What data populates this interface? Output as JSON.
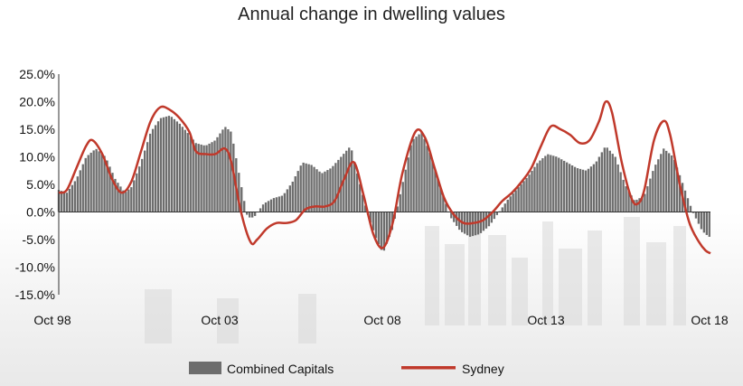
{
  "chart_data": {
    "type": "bar+line",
    "title": "Annual change in dwelling values",
    "y_ticks": [
      "25.0%",
      "20.0%",
      "15.0%",
      "10.0%",
      "5.0%",
      "0.0%",
      "-5.0%",
      "-10.0%",
      "-15.0%"
    ],
    "y_tick_values": [
      25,
      20,
      15,
      10,
      5,
      0,
      -5,
      -10,
      -15
    ],
    "x_ticks": [
      "Oct 98",
      "Oct 03",
      "Oct 08",
      "Oct 13",
      "Oct 18"
    ],
    "ylim": [
      -15,
      25
    ],
    "x_range": [
      "Oct 98",
      "Oct 18"
    ],
    "legend": {
      "placement": "bottom-center"
    },
    "series": [
      {
        "name": "Combined Capitals",
        "type": "bar",
        "color": "#6d6d6d",
        "points": [
          [
            1998.75,
            4.0
          ],
          [
            1999.0,
            3.5
          ],
          [
            1999.3,
            6.0
          ],
          [
            1999.6,
            10.0
          ],
          [
            1999.9,
            11.5
          ],
          [
            2000.2,
            10.0
          ],
          [
            2000.5,
            6.0
          ],
          [
            2000.8,
            3.5
          ],
          [
            2001.0,
            4.5
          ],
          [
            2001.3,
            9.0
          ],
          [
            2001.6,
            14.5
          ],
          [
            2001.9,
            17.0
          ],
          [
            2002.2,
            17.5
          ],
          [
            2002.5,
            16.0
          ],
          [
            2002.8,
            14.0
          ],
          [
            2003.0,
            12.5
          ],
          [
            2003.3,
            12.0
          ],
          [
            2003.6,
            13.0
          ],
          [
            2003.9,
            15.5
          ],
          [
            2004.1,
            14.5
          ],
          [
            2004.4,
            5.0
          ],
          [
            2004.6,
            -1.0
          ],
          [
            2004.8,
            -1.0
          ],
          [
            2005.1,
            1.5
          ],
          [
            2005.4,
            2.5
          ],
          [
            2005.7,
            3.0
          ],
          [
            2006.0,
            5.5
          ],
          [
            2006.3,
            9.0
          ],
          [
            2006.6,
            8.5
          ],
          [
            2006.9,
            7.0
          ],
          [
            2007.2,
            8.0
          ],
          [
            2007.5,
            10.0
          ],
          [
            2007.8,
            12.0
          ],
          [
            2008.0,
            7.0
          ],
          [
            2008.3,
            0.0
          ],
          [
            2008.6,
            -5.0
          ],
          [
            2008.8,
            -7.5
          ],
          [
            2009.1,
            -3.0
          ],
          [
            2009.4,
            5.0
          ],
          [
            2009.7,
            13.0
          ],
          [
            2010.0,
            14.5
          ],
          [
            2010.3,
            10.0
          ],
          [
            2010.6,
            4.0
          ],
          [
            2010.9,
            -1.0
          ],
          [
            2011.2,
            -3.5
          ],
          [
            2011.5,
            -4.5
          ],
          [
            2011.8,
            -4.0
          ],
          [
            2012.1,
            -2.5
          ],
          [
            2012.4,
            0.0
          ],
          [
            2012.7,
            2.5
          ],
          [
            2013.0,
            4.5
          ],
          [
            2013.3,
            6.5
          ],
          [
            2013.6,
            9.0
          ],
          [
            2013.9,
            10.5
          ],
          [
            2014.2,
            10.0
          ],
          [
            2014.5,
            9.0
          ],
          [
            2014.8,
            8.0
          ],
          [
            2015.1,
            7.5
          ],
          [
            2015.4,
            9.0
          ],
          [
            2015.7,
            12.0
          ],
          [
            2016.0,
            10.0
          ],
          [
            2016.3,
            5.0
          ],
          [
            2016.6,
            2.0
          ],
          [
            2016.9,
            3.0
          ],
          [
            2017.2,
            8.0
          ],
          [
            2017.5,
            11.5
          ],
          [
            2017.8,
            10.0
          ],
          [
            2018.1,
            5.0
          ],
          [
            2018.4,
            0.0
          ],
          [
            2018.7,
            -3.5
          ],
          [
            2018.9,
            -4.5
          ]
        ]
      },
      {
        "name": "Sydney",
        "type": "line",
        "color": "#c0392b",
        "points": [
          [
            1998.75,
            3.5
          ],
          [
            1999.0,
            4.0
          ],
          [
            1999.3,
            8.0
          ],
          [
            1999.6,
            12.0
          ],
          [
            1999.8,
            13.0
          ],
          [
            2000.1,
            10.5
          ],
          [
            2000.4,
            6.0
          ],
          [
            2000.7,
            3.5
          ],
          [
            2001.0,
            5.5
          ],
          [
            2001.3,
            11.0
          ],
          [
            2001.6,
            16.5
          ],
          [
            2001.9,
            19.0
          ],
          [
            2002.2,
            18.5
          ],
          [
            2002.5,
            17.0
          ],
          [
            2002.8,
            14.5
          ],
          [
            2003.0,
            11.0
          ],
          [
            2003.3,
            10.5
          ],
          [
            2003.6,
            10.5
          ],
          [
            2003.9,
            11.5
          ],
          [
            2004.1,
            9.0
          ],
          [
            2004.4,
            0.0
          ],
          [
            2004.7,
            -5.5
          ],
          [
            2004.9,
            -5.0
          ],
          [
            2005.2,
            -3.0
          ],
          [
            2005.5,
            -2.0
          ],
          [
            2005.8,
            -2.0
          ],
          [
            2006.1,
            -1.5
          ],
          [
            2006.4,
            0.5
          ],
          [
            2006.7,
            1.0
          ],
          [
            2007.0,
            1.0
          ],
          [
            2007.3,
            2.0
          ],
          [
            2007.6,
            6.0
          ],
          [
            2007.9,
            9.0
          ],
          [
            2008.2,
            3.0
          ],
          [
            2008.5,
            -4.0
          ],
          [
            2008.8,
            -6.5
          ],
          [
            2009.1,
            -2.0
          ],
          [
            2009.4,
            7.0
          ],
          [
            2009.8,
            14.5
          ],
          [
            2010.1,
            13.5
          ],
          [
            2010.4,
            8.0
          ],
          [
            2010.7,
            2.5
          ],
          [
            2011.0,
            -0.5
          ],
          [
            2011.3,
            -2.0
          ],
          [
            2011.6,
            -2.0
          ],
          [
            2011.9,
            -1.5
          ],
          [
            2012.2,
            0.0
          ],
          [
            2012.5,
            2.0
          ],
          [
            2012.8,
            3.5
          ],
          [
            2013.1,
            5.5
          ],
          [
            2013.4,
            8.0
          ],
          [
            2013.7,
            12.0
          ],
          [
            2014.0,
            15.5
          ],
          [
            2014.3,
            15.0
          ],
          [
            2014.6,
            14.0
          ],
          [
            2014.9,
            12.5
          ],
          [
            2015.2,
            13.0
          ],
          [
            2015.5,
            16.5
          ],
          [
            2015.7,
            20.0
          ],
          [
            2015.9,
            18.0
          ],
          [
            2016.2,
            9.0
          ],
          [
            2016.5,
            2.5
          ],
          [
            2016.7,
            1.5
          ],
          [
            2016.9,
            4.0
          ],
          [
            2017.2,
            13.0
          ],
          [
            2017.5,
            16.5
          ],
          [
            2017.7,
            14.0
          ],
          [
            2018.0,
            5.0
          ],
          [
            2018.3,
            -2.0
          ],
          [
            2018.6,
            -5.5
          ],
          [
            2018.8,
            -7.0
          ],
          [
            2018.95,
            -7.5
          ]
        ]
      }
    ]
  }
}
